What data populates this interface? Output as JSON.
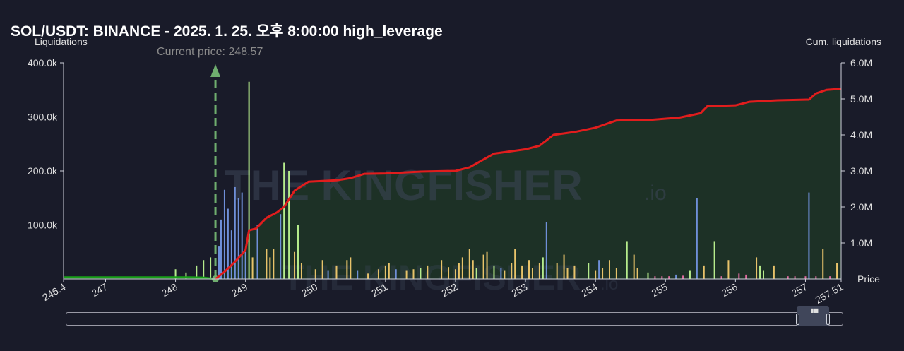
{
  "header": {
    "title": "SOL/USDT: BINANCE - 2025. 1. 25. 오후 8:00:00 high_leverage",
    "left_axis_title": "Liquidations",
    "right_axis_title": "Cum. liquidations"
  },
  "watermark": {
    "text": "THE KINGFISHER",
    "suffix": ".io"
  },
  "colors": {
    "background": "#191b29",
    "cumulative_line": "#e11d1d",
    "left_cumulative_line": "#19a019",
    "current_price_line": "#6fae6f",
    "bar_blue": "#6f8fd8",
    "bar_green": "#b6ec8c",
    "bar_yellow": "#e8c36a",
    "bar_pink": "#e06aa0",
    "area_fill": "#1f3526"
  },
  "chart_data": {
    "type": "bar",
    "title": "SOL/USDT: BINANCE - 2025. 1. 25. 오후 8:00:00 high_leverage",
    "xlabel": "Price",
    "ylabel": "Liquidations",
    "y2label": "Cum. liquidations",
    "xlim": [
      246.4,
      257.51
    ],
    "ylim": [
      0,
      400000
    ],
    "y2lim": [
      0,
      6000000
    ],
    "x_ticks": [
      "246.4",
      "247",
      "248",
      "249",
      "250",
      "251",
      "252",
      "253",
      "254",
      "255",
      "256",
      "257",
      "257.51"
    ],
    "x_tick_values": [
      246.4,
      247,
      248,
      249,
      250,
      251,
      252,
      253,
      254,
      255,
      256,
      257,
      257.51
    ],
    "y_ticks": [
      "100.0k",
      "200.0k",
      "300.0k",
      "400.0k"
    ],
    "y_tick_values": [
      100000,
      200000,
      300000,
      400000
    ],
    "y2_ticks": [
      "1.0M",
      "2.0M",
      "3.0M",
      "4.0M",
      "5.0M",
      "6.0M"
    ],
    "y2_tick_values": [
      1000000,
      2000000,
      3000000,
      4000000,
      5000000,
      6000000
    ],
    "current_price": 248.57,
    "current_price_label": "Current price: 248.57",
    "grid": false,
    "bars": [
      {
        "x": 248.0,
        "y": 18000,
        "c": "green"
      },
      {
        "x": 248.15,
        "y": 12000,
        "c": "green"
      },
      {
        "x": 248.3,
        "y": 25000,
        "c": "green"
      },
      {
        "x": 248.4,
        "y": 35000,
        "c": "green"
      },
      {
        "x": 248.5,
        "y": 40000,
        "c": "green"
      },
      {
        "x": 248.62,
        "y": 60000,
        "c": "blue"
      },
      {
        "x": 248.65,
        "y": 110000,
        "c": "blue"
      },
      {
        "x": 248.7,
        "y": 165000,
        "c": "blue"
      },
      {
        "x": 248.75,
        "y": 130000,
        "c": "blue"
      },
      {
        "x": 248.8,
        "y": 90000,
        "c": "blue"
      },
      {
        "x": 248.85,
        "y": 170000,
        "c": "blue"
      },
      {
        "x": 248.9,
        "y": 150000,
        "c": "blue"
      },
      {
        "x": 248.95,
        "y": 160000,
        "c": "blue"
      },
      {
        "x": 249.0,
        "y": 50000,
        "c": "blue"
      },
      {
        "x": 249.05,
        "y": 365000,
        "c": "green"
      },
      {
        "x": 249.1,
        "y": 40000,
        "c": "yellow"
      },
      {
        "x": 249.17,
        "y": 100000,
        "c": "blue"
      },
      {
        "x": 249.3,
        "y": 55000,
        "c": "yellow"
      },
      {
        "x": 249.35,
        "y": 40000,
        "c": "yellow"
      },
      {
        "x": 249.4,
        "y": 55000,
        "c": "yellow"
      },
      {
        "x": 249.5,
        "y": 120000,
        "c": "blue"
      },
      {
        "x": 249.55,
        "y": 215000,
        "c": "green"
      },
      {
        "x": 249.62,
        "y": 200000,
        "c": "green"
      },
      {
        "x": 249.7,
        "y": 50000,
        "c": "yellow"
      },
      {
        "x": 249.75,
        "y": 100000,
        "c": "green"
      },
      {
        "x": 249.8,
        "y": 30000,
        "c": "yellow"
      },
      {
        "x": 250.0,
        "y": 18000,
        "c": "yellow"
      },
      {
        "x": 250.1,
        "y": 35000,
        "c": "yellow"
      },
      {
        "x": 250.18,
        "y": 15000,
        "c": "blue"
      },
      {
        "x": 250.3,
        "y": 25000,
        "c": "yellow"
      },
      {
        "x": 250.45,
        "y": 35000,
        "c": "yellow"
      },
      {
        "x": 250.5,
        "y": 40000,
        "c": "yellow"
      },
      {
        "x": 250.6,
        "y": 15000,
        "c": "blue"
      },
      {
        "x": 250.75,
        "y": 10000,
        "c": "yellow"
      },
      {
        "x": 250.9,
        "y": 18000,
        "c": "yellow"
      },
      {
        "x": 251.0,
        "y": 25000,
        "c": "yellow"
      },
      {
        "x": 251.05,
        "y": 30000,
        "c": "yellow"
      },
      {
        "x": 251.15,
        "y": 18000,
        "c": "blue"
      },
      {
        "x": 251.3,
        "y": 15000,
        "c": "yellow"
      },
      {
        "x": 251.4,
        "y": 18000,
        "c": "yellow"
      },
      {
        "x": 251.5,
        "y": 20000,
        "c": "green"
      },
      {
        "x": 251.6,
        "y": 25000,
        "c": "yellow"
      },
      {
        "x": 251.8,
        "y": 35000,
        "c": "yellow"
      },
      {
        "x": 251.9,
        "y": 22000,
        "c": "yellow"
      },
      {
        "x": 252.0,
        "y": 18000,
        "c": "yellow"
      },
      {
        "x": 252.05,
        "y": 30000,
        "c": "yellow"
      },
      {
        "x": 252.1,
        "y": 40000,
        "c": "yellow"
      },
      {
        "x": 252.2,
        "y": 55000,
        "c": "yellow"
      },
      {
        "x": 252.25,
        "y": 35000,
        "c": "yellow"
      },
      {
        "x": 252.3,
        "y": 20000,
        "c": "green"
      },
      {
        "x": 252.4,
        "y": 45000,
        "c": "yellow"
      },
      {
        "x": 252.45,
        "y": 50000,
        "c": "yellow"
      },
      {
        "x": 252.55,
        "y": 25000,
        "c": "green"
      },
      {
        "x": 252.65,
        "y": 20000,
        "c": "blue"
      },
      {
        "x": 252.7,
        "y": 15000,
        "c": "yellow"
      },
      {
        "x": 252.8,
        "y": 30000,
        "c": "yellow"
      },
      {
        "x": 252.85,
        "y": 55000,
        "c": "yellow"
      },
      {
        "x": 252.95,
        "y": 25000,
        "c": "yellow"
      },
      {
        "x": 253.05,
        "y": 35000,
        "c": "yellow"
      },
      {
        "x": 253.1,
        "y": 20000,
        "c": "yellow"
      },
      {
        "x": 253.2,
        "y": 30000,
        "c": "yellow"
      },
      {
        "x": 253.25,
        "y": 40000,
        "c": "green"
      },
      {
        "x": 253.3,
        "y": 105000,
        "c": "blue"
      },
      {
        "x": 253.45,
        "y": 30000,
        "c": "yellow"
      },
      {
        "x": 253.55,
        "y": 45000,
        "c": "yellow"
      },
      {
        "x": 253.6,
        "y": 20000,
        "c": "yellow"
      },
      {
        "x": 253.7,
        "y": 25000,
        "c": "yellow"
      },
      {
        "x": 253.9,
        "y": 30000,
        "c": "green"
      },
      {
        "x": 254.0,
        "y": 15000,
        "c": "yellow"
      },
      {
        "x": 254.05,
        "y": 35000,
        "c": "blue"
      },
      {
        "x": 254.1,
        "y": 20000,
        "c": "yellow"
      },
      {
        "x": 254.2,
        "y": 35000,
        "c": "yellow"
      },
      {
        "x": 254.3,
        "y": 20000,
        "c": "yellow"
      },
      {
        "x": 254.45,
        "y": 70000,
        "c": "green"
      },
      {
        "x": 254.55,
        "y": 45000,
        "c": "yellow"
      },
      {
        "x": 254.6,
        "y": 20000,
        "c": "yellow"
      },
      {
        "x": 254.75,
        "y": 12000,
        "c": "green"
      },
      {
        "x": 254.85,
        "y": 5000,
        "c": "pink"
      },
      {
        "x": 254.95,
        "y": 5000,
        "c": "pink"
      },
      {
        "x": 255.05,
        "y": 5000,
        "c": "pink"
      },
      {
        "x": 255.15,
        "y": 8000,
        "c": "blue"
      },
      {
        "x": 255.25,
        "y": 6000,
        "c": "pink"
      },
      {
        "x": 255.35,
        "y": 15000,
        "c": "green"
      },
      {
        "x": 255.45,
        "y": 150000,
        "c": "blue"
      },
      {
        "x": 255.55,
        "y": 25000,
        "c": "yellow"
      },
      {
        "x": 255.7,
        "y": 70000,
        "c": "green"
      },
      {
        "x": 255.8,
        "y": 5000,
        "c": "pink"
      },
      {
        "x": 255.9,
        "y": 35000,
        "c": "yellow"
      },
      {
        "x": 256.05,
        "y": 10000,
        "c": "pink"
      },
      {
        "x": 256.15,
        "y": 8000,
        "c": "pink"
      },
      {
        "x": 256.3,
        "y": 40000,
        "c": "yellow"
      },
      {
        "x": 256.35,
        "y": 25000,
        "c": "green"
      },
      {
        "x": 256.4,
        "y": 15000,
        "c": "green"
      },
      {
        "x": 256.55,
        "y": 25000,
        "c": "yellow"
      },
      {
        "x": 256.75,
        "y": 5000,
        "c": "pink"
      },
      {
        "x": 256.85,
        "y": 5000,
        "c": "pink"
      },
      {
        "x": 257.0,
        "y": 5000,
        "c": "pink"
      },
      {
        "x": 257.05,
        "y": 160000,
        "c": "blue"
      },
      {
        "x": 257.15,
        "y": 5000,
        "c": "pink"
      },
      {
        "x": 257.25,
        "y": 55000,
        "c": "yellow"
      },
      {
        "x": 257.35,
        "y": 5000,
        "c": "pink"
      },
      {
        "x": 257.45,
        "y": 30000,
        "c": "yellow"
      }
    ],
    "cumulative_series": {
      "axis": "right",
      "points": [
        [
          248.57,
          0
        ],
        [
          248.7,
          200000
        ],
        [
          248.85,
          480000
        ],
        [
          249.0,
          800000
        ],
        [
          249.05,
          1350000
        ],
        [
          249.15,
          1400000
        ],
        [
          249.3,
          1700000
        ],
        [
          249.45,
          1850000
        ],
        [
          249.55,
          2000000
        ],
        [
          249.7,
          2450000
        ],
        [
          249.9,
          2700000
        ],
        [
          250.3,
          2740000
        ],
        [
          250.5,
          2800000
        ],
        [
          250.7,
          2920000
        ],
        [
          251.0,
          2930000
        ],
        [
          251.5,
          2980000
        ],
        [
          252.0,
          3000000
        ],
        [
          252.2,
          3100000
        ],
        [
          252.55,
          3480000
        ],
        [
          253.0,
          3600000
        ],
        [
          253.2,
          3700000
        ],
        [
          253.4,
          4000000
        ],
        [
          253.7,
          4080000
        ],
        [
          254.0,
          4200000
        ],
        [
          254.3,
          4400000
        ],
        [
          254.8,
          4420000
        ],
        [
          255.2,
          4480000
        ],
        [
          255.5,
          4600000
        ],
        [
          255.6,
          4800000
        ],
        [
          256.0,
          4820000
        ],
        [
          256.2,
          4920000
        ],
        [
          256.6,
          4960000
        ],
        [
          257.05,
          4980000
        ],
        [
          257.15,
          5150000
        ],
        [
          257.3,
          5250000
        ],
        [
          257.51,
          5280000
        ]
      ]
    },
    "left_cumulative_series": {
      "axis": "right",
      "points": [
        [
          246.4,
          270000
        ],
        [
          248.0,
          270000
        ],
        [
          248.2,
          260000
        ],
        [
          248.4,
          220000
        ],
        [
          248.57,
          0
        ]
      ]
    }
  }
}
